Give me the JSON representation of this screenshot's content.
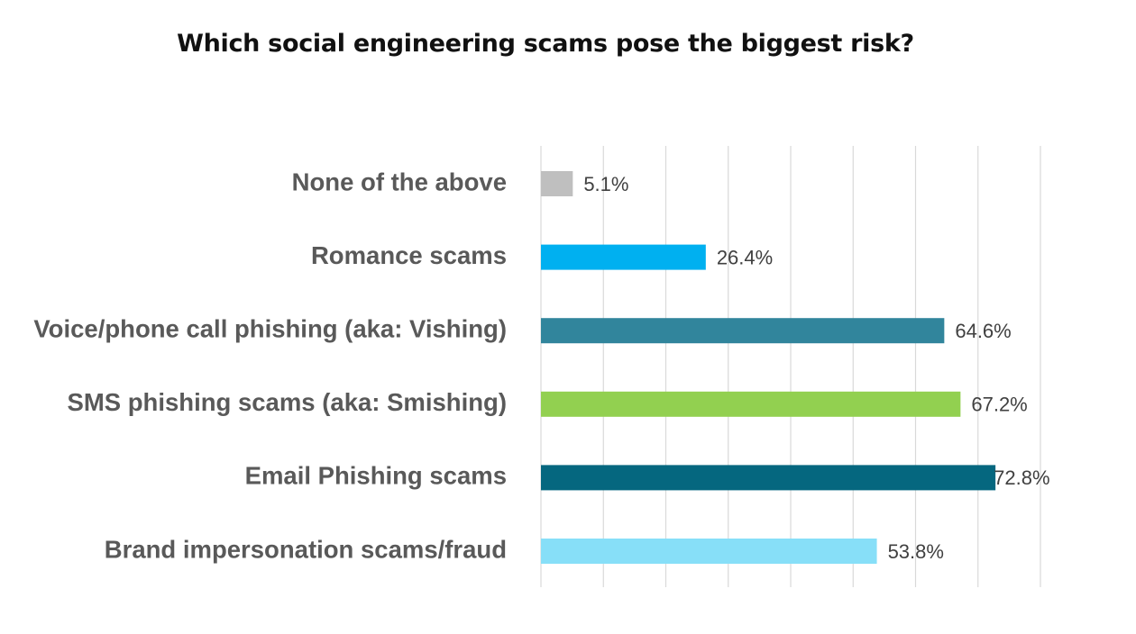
{
  "chart_data": {
    "type": "bar",
    "orientation": "horizontal",
    "title": "Which social engineering scams pose the biggest risk?",
    "categories": [
      "None of the above",
      "Romance scams",
      "Voice/phone call phishing (aka: Vishing)",
      "SMS phishing scams (aka: Smishing)",
      "Email Phishing scams",
      "Brand impersonation scams/fraud"
    ],
    "values": [
      5.1,
      26.4,
      64.6,
      67.2,
      72.8,
      53.8
    ],
    "value_labels": [
      "5.1%",
      "26.4%",
      "64.6%",
      "67.2%",
      "72.8%",
      "53.8%"
    ],
    "colors": [
      "#bfbfbf",
      "#00b0f0",
      "#31859c",
      "#92d050",
      "#05677f",
      "#87dff8"
    ],
    "xlim": [
      0,
      80
    ],
    "grid": true,
    "legend": "none"
  }
}
